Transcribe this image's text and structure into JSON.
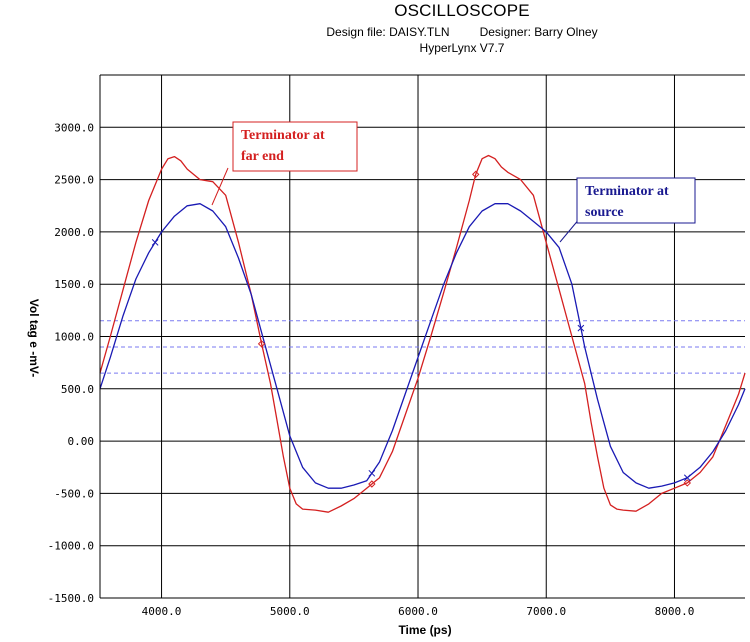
{
  "header": {
    "title": "OSCILLOSCOPE",
    "design_file": "Design file: DAISY.TLN",
    "designer": "Designer: Barry Olney",
    "version": "HyperLynx V7.7"
  },
  "chart_data": {
    "type": "line",
    "xlabel": "Time  (ps)",
    "ylabel": "Vol tag e -mV-",
    "xlim": [
      3520,
      8550
    ],
    "ylim": [
      -1500,
      3500
    ],
    "x_ticks": [
      {
        "v": 4000,
        "label": "4000.0"
      },
      {
        "v": 5000,
        "label": "5000.0"
      },
      {
        "v": 6000,
        "label": "6000.0"
      },
      {
        "v": 7000,
        "label": "7000.0"
      },
      {
        "v": 8000,
        "label": "8000.0"
      }
    ],
    "y_ticks": [
      {
        "v": 3000,
        "label": "3000.0"
      },
      {
        "v": 2500,
        "label": "2500.0"
      },
      {
        "v": 2000,
        "label": "2000.0"
      },
      {
        "v": 1500,
        "label": "1500.0"
      },
      {
        "v": 1000,
        "label": "1000.0"
      },
      {
        "v": 500,
        "label": "500.0"
      },
      {
        "v": 0,
        "label": "0.00"
      },
      {
        "v": -500,
        "label": "-500.0"
      },
      {
        "v": -1000,
        "label": "-1000.0"
      },
      {
        "v": -1500,
        "label": "-1500.0"
      }
    ],
    "grid": true,
    "threshold_lines": [
      1150,
      900,
      650
    ],
    "colors": {
      "far_end": "#d42020",
      "source": "#1a1ab4",
      "threshold": "#7a7af0",
      "callout_far": "#d42020",
      "callout_source": "#1a1a90"
    },
    "series": [
      {
        "name": "Terminator at far end",
        "color": "#d42020",
        "x": [
          3520,
          3600,
          3700,
          3800,
          3900,
          4000,
          4050,
          4100,
          4150,
          4200,
          4300,
          4400,
          4500,
          4600,
          4700,
          4780,
          4850,
          4900,
          4950,
          5000,
          5050,
          5100,
          5200,
          5300,
          5400,
          5500,
          5600,
          5700,
          5800,
          5900,
          6000,
          6100,
          6200,
          6300,
          6400,
          6450,
          6500,
          6550,
          6600,
          6650,
          6700,
          6800,
          6900,
          7000,
          7100,
          7200,
          7300,
          7350,
          7400,
          7450,
          7500,
          7550,
          7600,
          7700,
          7800,
          7900,
          8000,
          8100,
          8200,
          8300,
          8400,
          8500,
          8550
        ],
        "y": [
          650,
          1000,
          1450,
          1900,
          2300,
          2600,
          2700,
          2720,
          2680,
          2600,
          2500,
          2480,
          2350,
          1900,
          1400,
          930,
          550,
          200,
          -150,
          -450,
          -600,
          -650,
          -660,
          -680,
          -620,
          -550,
          -450,
          -350,
          -100,
          250,
          600,
          1000,
          1420,
          1850,
          2300,
          2550,
          2700,
          2730,
          2700,
          2620,
          2570,
          2500,
          2350,
          1900,
          1450,
          1000,
          550,
          180,
          -150,
          -450,
          -610,
          -650,
          -660,
          -670,
          -600,
          -500,
          -450,
          -400,
          -300,
          -150,
          150,
          450,
          650
        ]
      },
      {
        "name": "Terminator at source",
        "color": "#1a1ab4",
        "x": [
          3520,
          3600,
          3700,
          3800,
          3900,
          3950,
          4000,
          4100,
          4200,
          4300,
          4400,
          4500,
          4600,
          4700,
          4800,
          4900,
          5000,
          5100,
          5200,
          5300,
          5400,
          5500,
          5600,
          5700,
          5800,
          5900,
          6000,
          6100,
          6200,
          6300,
          6400,
          6500,
          6600,
          6700,
          6800,
          6900,
          7000,
          7100,
          7200,
          7270,
          7300,
          7400,
          7500,
          7600,
          7700,
          7800,
          7900,
          8000,
          8100,
          8200,
          8300,
          8400,
          8500,
          8550
        ],
        "y": [
          500,
          800,
          1200,
          1550,
          1800,
          1900,
          2000,
          2150,
          2250,
          2270,
          2200,
          2050,
          1750,
          1400,
          950,
          500,
          50,
          -250,
          -400,
          -450,
          -450,
          -420,
          -380,
          -200,
          100,
          450,
          800,
          1150,
          1500,
          1800,
          2050,
          2200,
          2270,
          2270,
          2200,
          2100,
          2000,
          1850,
          1500,
          1080,
          900,
          400,
          -50,
          -300,
          -400,
          -450,
          -430,
          -400,
          -350,
          -250,
          -100,
          100,
          350,
          500
        ]
      }
    ],
    "callouts": [
      {
        "id": "far",
        "lines": [
          "Terminator at",
          "far end"
        ]
      },
      {
        "id": "source",
        "lines": [
          "Terminator at",
          "source"
        ]
      }
    ]
  }
}
